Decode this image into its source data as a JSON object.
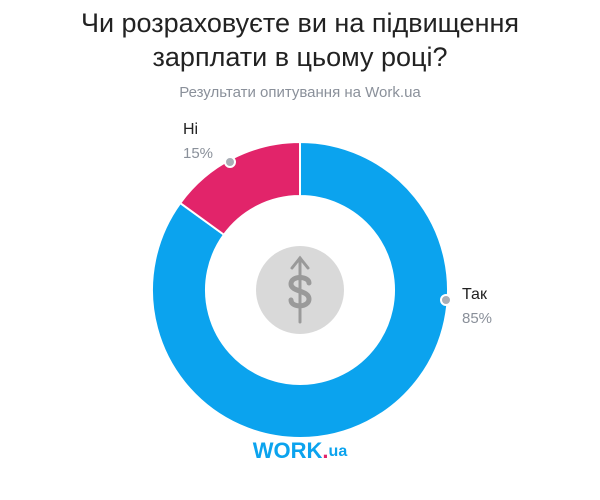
{
  "chart_data": {
    "type": "donut",
    "title": "Чи розраховуєте ви на підвищення зарплати в цьому році?",
    "subtitle": "Результати опитування на Work.ua",
    "categories": [
      "Так",
      "Ні"
    ],
    "values": [
      85,
      15
    ],
    "value_labels": [
      "85%",
      "15%"
    ],
    "colors": [
      "#0ba3ee",
      "#e2246a"
    ],
    "logo": [
      "WORK",
      ".",
      "ua"
    ]
  }
}
